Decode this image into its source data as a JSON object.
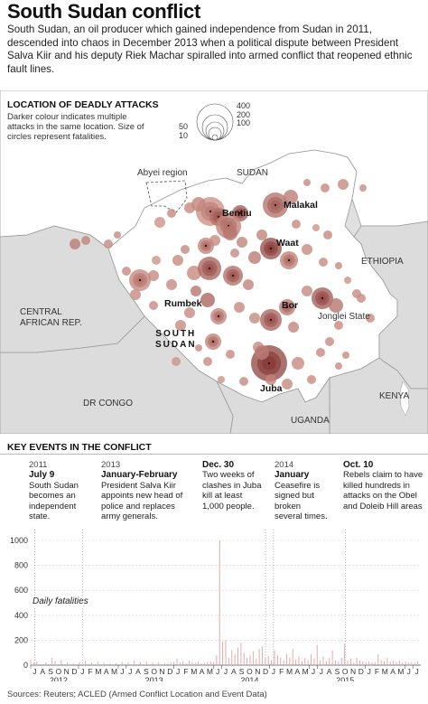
{
  "title": "South Sudan conflict",
  "intro": "South Sudan, an oil producer which gained independence from Sudan in 2011, descended into chaos in December 2013 when a political dispute between President Salva Kiir and his deputy Riek Machar spiralled into armed conflict that reopened ethnic fault lines.",
  "map": {
    "heading": "LOCATION OF DEADLY ATTACKS",
    "legend_note_lines": [
      "Darker colour indicates multiple",
      "attacks in the same location. Size of",
      "circles represent fatalities."
    ],
    "legend_sizes": [
      {
        "label": "400",
        "value": 400
      },
      {
        "label": "200",
        "value": 200
      },
      {
        "label": "100",
        "value": 100
      },
      {
        "label": "50",
        "value": 50
      },
      {
        "label": "10",
        "value": 10
      }
    ],
    "region_labels": {
      "sudan": "SUDAN",
      "ethiopia": "ETHIOPIA",
      "car_line1": "CENTRAL",
      "car_line2": "AFRICAN REP.",
      "south_sudan_line1": "SOUTH",
      "south_sudan_line2": "SUDAN",
      "dr_congo": "DR CONGO",
      "kenya": "KENYA",
      "uganda": "UGANDA",
      "abyei": "Abyei region",
      "jonglei": "Jonglei State"
    },
    "cities": [
      "Bentiu",
      "Malakal",
      "Waat",
      "Rumbek",
      "Bor",
      "Juba"
    ],
    "colors": {
      "land": "#ffffff",
      "neighbours": "#dcdcdc",
      "border": "#9a9a9a",
      "circle_light": "#e8b5a6",
      "circle_dark": "#7a2a2a"
    }
  },
  "events": {
    "heading": "KEY EVENTS IN THE CONFLICT",
    "items": [
      {
        "year": "2011",
        "date": "July 9",
        "lines": [
          "South Sudan",
          "becomes an",
          "independent",
          "state."
        ]
      },
      {
        "year": "2013",
        "date": "January-February",
        "lines": [
          "President Salva Kiir",
          "appoints new head of",
          "police and replaces",
          "army generals."
        ]
      },
      {
        "year": "",
        "date": "Dec. 30",
        "lines": [
          "Two weeks of",
          "clashes in Juba",
          "kill at least",
          "1,000 people."
        ]
      },
      {
        "year": "2014",
        "date": "January",
        "lines": [
          "Ceasefire is",
          "signed but",
          "broken",
          "several times."
        ]
      },
      {
        "year": "",
        "date": "Oct. 10",
        "lines": [
          "Rebels claim to have",
          "killed hundreds in",
          "attacks on the Obel",
          "and Doleib Hill areas"
        ]
      }
    ]
  },
  "chart_data": {
    "type": "bar",
    "title": "",
    "ylabel": "Daily fatalities",
    "xlabel": "",
    "ylim": [
      0,
      1000
    ],
    "yticks": [
      0,
      200,
      400,
      600,
      800,
      1000
    ],
    "month_labels": [
      "J",
      "A",
      "S",
      "O",
      "N",
      "D",
      "J",
      "F",
      "M",
      "A",
      "M",
      "J",
      "J",
      "A",
      "S",
      "O",
      "N",
      "D",
      "J",
      "F",
      "M",
      "A",
      "M",
      "J",
      "J",
      "A",
      "S",
      "O",
      "N",
      "D",
      "J",
      "F",
      "M",
      "A",
      "M",
      "J",
      "J",
      "A",
      "S",
      "O",
      "N",
      "D",
      "J",
      "F",
      "M",
      "A",
      "M",
      "J",
      "J"
    ],
    "year_labels": [
      "2012",
      "2013",
      "2014",
      "2015"
    ],
    "event_month_index": [
      0,
      6,
      29,
      30,
      39
    ],
    "series": [
      {
        "values": [
          [
            0,
            45
          ],
          [
            1,
            20
          ],
          [
            2,
            30
          ],
          [
            5,
            25
          ],
          [
            7,
            60
          ],
          [
            8,
            35
          ],
          [
            10,
            40
          ],
          [
            12,
            20
          ],
          [
            14,
            15
          ],
          [
            16,
            25
          ],
          [
            18,
            35
          ],
          [
            20,
            20
          ],
          [
            22,
            30
          ],
          [
            24,
            20
          ],
          [
            26,
            15
          ],
          [
            28,
            15
          ],
          [
            30,
            25
          ],
          [
            32,
            20
          ],
          [
            34,
            40
          ],
          [
            36,
            25
          ],
          [
            38,
            30
          ],
          [
            40,
            20
          ],
          [
            42,
            25
          ],
          [
            44,
            15
          ],
          [
            45,
            15
          ],
          [
            46,
            20
          ],
          [
            47,
            25
          ],
          [
            48,
            50
          ],
          [
            49,
            20
          ],
          [
            50,
            30
          ],
          [
            51,
            15
          ],
          [
            52,
            35
          ],
          [
            53,
            25
          ],
          [
            54,
            20
          ],
          [
            55,
            30
          ],
          [
            56,
            15
          ],
          [
            57,
            20
          ],
          [
            58,
            25
          ],
          [
            59,
            30
          ],
          [
            60,
            20
          ],
          [
            61,
            80
          ],
          [
            62,
            1000
          ],
          [
            63,
            190
          ],
          [
            64,
            200
          ],
          [
            65,
            60
          ],
          [
            66,
            120
          ],
          [
            67,
            90
          ],
          [
            68,
            140
          ],
          [
            69,
            180
          ],
          [
            70,
            100
          ],
          [
            71,
            60
          ],
          [
            72,
            80
          ],
          [
            73,
            110
          ],
          [
            74,
            50
          ],
          [
            75,
            130
          ],
          [
            76,
            150
          ],
          [
            77,
            60
          ],
          [
            78,
            70
          ],
          [
            79,
            40
          ],
          [
            80,
            120
          ],
          [
            81,
            80
          ],
          [
            82,
            60
          ],
          [
            83,
            40
          ],
          [
            84,
            90
          ],
          [
            85,
            60
          ],
          [
            86,
            130
          ],
          [
            87,
            45
          ],
          [
            88,
            70
          ],
          [
            89,
            30
          ],
          [
            90,
            60
          ],
          [
            91,
            40
          ],
          [
            92,
            90
          ],
          [
            93,
            50
          ],
          [
            94,
            160
          ],
          [
            95,
            40
          ],
          [
            96,
            70
          ],
          [
            97,
            30
          ],
          [
            98,
            60
          ],
          [
            99,
            120
          ],
          [
            100,
            40
          ],
          [
            101,
            30
          ],
          [
            102,
            60
          ],
          [
            103,
            170
          ],
          [
            104,
            40
          ],
          [
            105,
            50
          ],
          [
            106,
            20
          ],
          [
            107,
            60
          ],
          [
            108,
            40
          ],
          [
            109,
            30
          ],
          [
            110,
            25
          ],
          [
            111,
            30
          ],
          [
            112,
            20
          ],
          [
            113,
            25
          ],
          [
            114,
            90
          ],
          [
            115,
            40
          ],
          [
            116,
            30
          ],
          [
            117,
            60
          ],
          [
            118,
            30
          ],
          [
            119,
            40
          ],
          [
            120,
            25
          ],
          [
            121,
            35
          ],
          [
            122,
            20
          ],
          [
            123,
            30
          ],
          [
            124,
            20
          ],
          [
            125,
            25
          ],
          [
            126,
            20
          ],
          [
            127,
            30
          ]
        ]
      }
    ]
  }
}
